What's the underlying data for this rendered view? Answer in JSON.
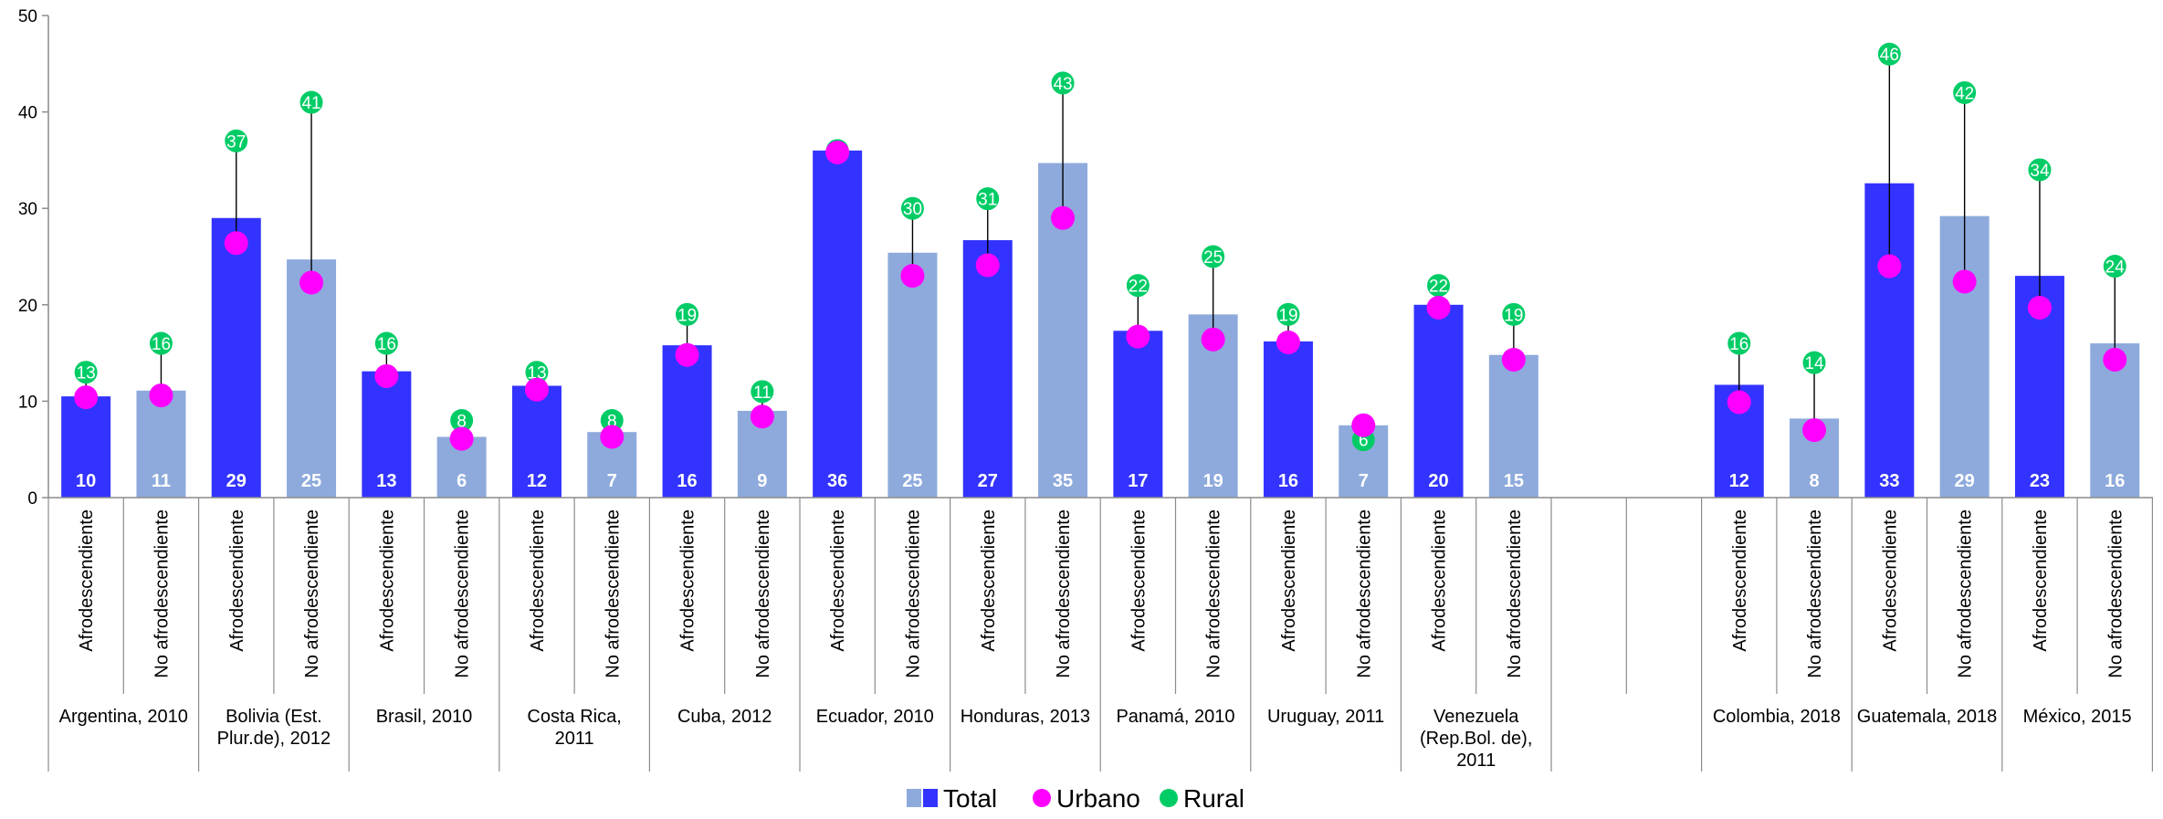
{
  "chart_data": {
    "type": "bar",
    "ylim": [
      0,
      50
    ],
    "y_ticks": [
      "0",
      "10",
      "20",
      "30",
      "40",
      "50"
    ],
    "groups": [
      {
        "name": "Argentina, 2010",
        "subs": [
          {
            "category": "Afrodescendiente",
            "total": 10.5,
            "total_label": "10",
            "urbano": 10.4,
            "rural": 13,
            "rural_label": "13"
          },
          {
            "category": "No afrodescendiente",
            "total": 11.1,
            "total_label": "11",
            "urbano": 10.6,
            "rural": 16,
            "rural_label": "16"
          }
        ]
      },
      {
        "name": "Bolivia (Est. Plur.de), 2012",
        "subs": [
          {
            "category": "Afrodescendiente",
            "total": 29,
            "total_label": "29",
            "urbano": 26.4,
            "rural": 37,
            "rural_label": "37"
          },
          {
            "category": "No afrodescendiente",
            "total": 24.7,
            "total_label": "25",
            "urbano": 22.3,
            "rural": 41,
            "rural_label": "41"
          }
        ]
      },
      {
        "name": "Brasil, 2010",
        "subs": [
          {
            "category": "Afrodescendiente",
            "total": 13.1,
            "total_label": "13",
            "urbano": 12.6,
            "rural": 16,
            "rural_label": "16"
          },
          {
            "category": "No afrodescendiente",
            "total": 6.3,
            "total_label": "6",
            "urbano": 6.1,
            "rural": 8,
            "rural_label": "8"
          }
        ]
      },
      {
        "name": "Costa Rica, 2011",
        "subs": [
          {
            "category": "Afrodescendiente",
            "total": 11.6,
            "total_label": "12",
            "urbano": 11.2,
            "rural": 13,
            "rural_label": "13"
          },
          {
            "category": "No afrodescendiente",
            "total": 6.8,
            "total_label": "7",
            "urbano": 6.3,
            "rural": 8,
            "rural_label": "8"
          }
        ]
      },
      {
        "name": "Cuba, 2012",
        "subs": [
          {
            "category": "Afrodescendiente",
            "total": 15.8,
            "total_label": "16",
            "urbano": 14.8,
            "rural": 19,
            "rural_label": "19"
          },
          {
            "category": "No afrodescendiente",
            "total": 9,
            "total_label": "9",
            "urbano": 8.4,
            "rural": 11,
            "rural_label": "11"
          }
        ]
      },
      {
        "name": "Ecuador, 2010",
        "subs": [
          {
            "category": "Afrodescendiente",
            "total": 36,
            "total_label": "36",
            "urbano": 35.8,
            "rural": 36,
            "rural_label": "36"
          },
          {
            "category": "No afrodescendiente",
            "total": 25.4,
            "total_label": "25",
            "urbano": 23,
            "rural": 30,
            "rural_label": "30"
          }
        ]
      },
      {
        "name": "Honduras, 2013",
        "subs": [
          {
            "category": "Afrodescendiente",
            "total": 26.7,
            "total_label": "27",
            "urbano": 24.1,
            "rural": 31,
            "rural_label": "31"
          },
          {
            "category": "No afrodescendiente",
            "total": 34.7,
            "total_label": "35",
            "urbano": 29,
            "rural": 43,
            "rural_label": "43"
          }
        ]
      },
      {
        "name": "Panamá, 2010",
        "subs": [
          {
            "category": "Afrodescendiente",
            "total": 17.3,
            "total_label": "17",
            "urbano": 16.7,
            "rural": 22,
            "rural_label": "22"
          },
          {
            "category": "No afrodescendiente",
            "total": 19,
            "total_label": "19",
            "urbano": 16.4,
            "rural": 25,
            "rural_label": "25"
          }
        ]
      },
      {
        "name": "Uruguay, 2011",
        "subs": [
          {
            "category": "Afrodescendiente",
            "total": 16.2,
            "total_label": "16",
            "urbano": 16.1,
            "rural": 19,
            "rural_label": "19"
          },
          {
            "category": "No afrodescendiente",
            "total": 7.5,
            "total_label": "7",
            "urbano": 7.5,
            "rural": 6,
            "rural_label": "6"
          }
        ]
      },
      {
        "name": "Venezuela (Rep.Bol. de), 2011",
        "subs": [
          {
            "category": "Afrodescendiente",
            "total": 20,
            "total_label": "20",
            "urbano": 19.7,
            "rural": 22,
            "rural_label": "22"
          },
          {
            "category": "No afrodescendiente",
            "total": 14.8,
            "total_label": "15",
            "urbano": 14.3,
            "rural": 19,
            "rural_label": "19"
          }
        ]
      },
      {
        "name": "",
        "subs": [
          {
            "category": "",
            "total": null
          },
          {
            "category": "",
            "total": null
          }
        ]
      },
      {
        "name": "Colombia, 2018",
        "subs": [
          {
            "category": "Afrodescendiente",
            "total": 11.7,
            "total_label": "12",
            "urbano": 9.9,
            "rural": 16,
            "rural_label": "16"
          },
          {
            "category": "No afrodescendiente",
            "total": 8.2,
            "total_label": "8",
            "urbano": 7,
            "rural": 14,
            "rural_label": "14"
          }
        ]
      },
      {
        "name": "Guatemala, 2018",
        "subs": [
          {
            "category": "Afrodescendiente",
            "total": 32.6,
            "total_label": "33",
            "urbano": 24,
            "rural": 46,
            "rural_label": "46"
          },
          {
            "category": "No afrodescendiente",
            "total": 29.2,
            "total_label": "29",
            "urbano": 22.4,
            "rural": 42,
            "rural_label": "42"
          }
        ]
      },
      {
        "name": "México, 2015",
        "subs": [
          {
            "category": "Afrodescendiente",
            "total": 23,
            "total_label": "23",
            "urbano": 19.7,
            "rural": 34,
            "rural_label": "34"
          },
          {
            "category": "No afrodescendiente",
            "total": 16,
            "total_label": "16",
            "urbano": 14.3,
            "rural": 24,
            "rural_label": "24"
          }
        ]
      }
    ],
    "legend": {
      "placement": "bottom-center",
      "entries": [
        {
          "key": "total",
          "label": "Total"
        },
        {
          "key": "urbano",
          "label": "Urbano"
        },
        {
          "key": "rural",
          "label": "Rural"
        }
      ]
    },
    "colors": {
      "afro": "#3333ff",
      "no_afro": "#8eaadc",
      "urbano": "#ff00ff",
      "rural": "#00cc66",
      "axis": "#8c8c8c"
    },
    "grid": false
  }
}
